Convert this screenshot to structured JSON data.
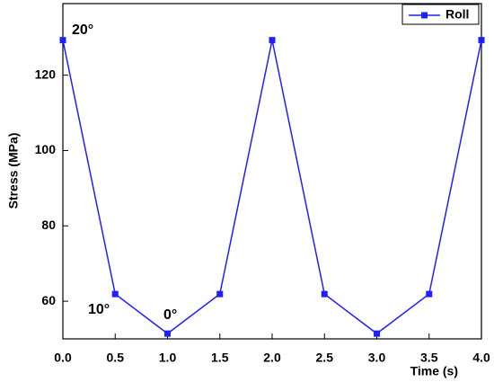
{
  "chart_data": {
    "type": "line",
    "x_label": "Time (s)",
    "y_label": "Stress (MPa)",
    "x": [
      0,
      0.5,
      1,
      1.5,
      2,
      2.5,
      3,
      3.5,
      4
    ],
    "series": [
      {
        "name": "Roll",
        "color": "#1f1fff",
        "values": [
          129.3,
          61.9,
          51.4,
          61.9,
          129.3,
          61.9,
          51.4,
          61.9,
          129.3
        ]
      }
    ],
    "xlim": [
      0,
      4
    ],
    "ylim": [
      50,
      139
    ],
    "xticks": [
      {
        "value": 0,
        "label": "0.0"
      },
      {
        "value": 0.5,
        "label": "0.5"
      },
      {
        "value": 1,
        "label": "1.0"
      },
      {
        "value": 1.5,
        "label": "1.5"
      },
      {
        "value": 2,
        "label": "2.0"
      },
      {
        "value": 2.5,
        "label": "2.5"
      },
      {
        "value": 3,
        "label": "3.0"
      },
      {
        "value": 3.5,
        "label": "3.5"
      },
      {
        "value": 4,
        "label": "4.0"
      }
    ],
    "yticks": [
      60,
      80,
      100,
      120
    ],
    "annotations": [
      "20°",
      "10°",
      "0°"
    ],
    "legend": "top-right",
    "grid": false
  }
}
